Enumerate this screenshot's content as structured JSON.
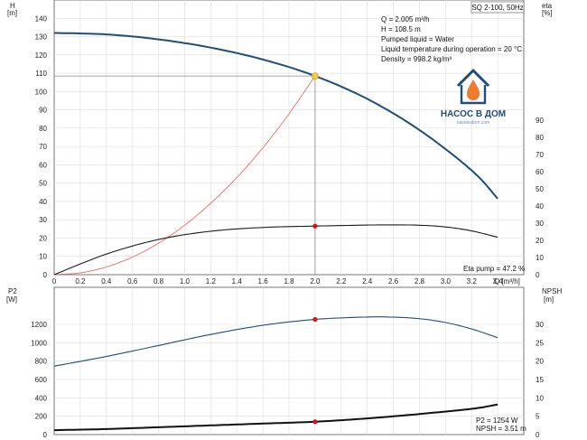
{
  "title_box": "SQ 2-100, 50Hz",
  "info_lines": [
    "Q = 2.005 m³/h",
    "H = 108.5 m",
    "Pumped liquid = Water",
    "Liquid temperature during operation = 20 °C",
    "Density = 998.2 kg/m³"
  ],
  "logo": {
    "title": "НАСОС В ДОМ",
    "subtitle": "nasosvdom.com"
  },
  "colors": {
    "head_curve": "#1f4e79",
    "eta_curve": "#1a1a1a",
    "system_curve": "#f06a5a",
    "duty_point": "#f5c542",
    "marker": "#e01010",
    "grid": "#dddddd"
  },
  "chart_data": [
    {
      "type": "line",
      "x_label": "Q [m³/h]",
      "y_left_label_top": "H",
      "y_left_label_unit": "[m]",
      "y_right_label_top": "eta",
      "y_right_label_unit": "[%]",
      "xlim": [
        0,
        3.6
      ],
      "ylim_left": [
        0,
        150
      ],
      "ylim_right": [
        0,
        90
      ],
      "x_ticks": [
        "0",
        "0.2",
        "0.4",
        "0.6",
        "0.8",
        "1.0",
        "1.2",
        "1.4",
        "1.6",
        "1.8",
        "2.0",
        "2.2",
        "2.4",
        "2.6",
        "2.8",
        "3.0",
        "3.2",
        "3.4",
        "Q [m³/h]"
      ],
      "y_left_ticks": [
        "0",
        "10",
        "20",
        "30",
        "40",
        "50",
        "60",
        "70",
        "80",
        "90",
        "100",
        "110",
        "120",
        "130",
        "140"
      ],
      "y_right_ticks": [
        "0",
        "10",
        "20",
        "30",
        "40",
        "50",
        "60",
        "70",
        "80",
        "90"
      ],
      "grid": true,
      "series": [
        {
          "key": "H",
          "axis": "left",
          "x": [
            0,
            0.4,
            0.8,
            1.2,
            1.6,
            2.0,
            2.4,
            2.8,
            3.2,
            3.4
          ],
          "y": [
            132,
            131.2,
            128.5,
            124,
            117.5,
            108.5,
            96,
            79,
            57,
            41.5
          ]
        },
        {
          "key": "Eta",
          "axis": "right",
          "x": [
            0,
            0.4,
            0.8,
            1.2,
            1.6,
            2.0,
            2.4,
            2.6,
            2.8,
            3.0,
            3.2,
            3.4
          ],
          "y": [
            0,
            12,
            20.5,
            25.3,
            27.5,
            28.3,
            28.9,
            29.0,
            28.8,
            27.8,
            25.5,
            21.8
          ]
        },
        {
          "key": "System",
          "axis": "left",
          "x": [
            0,
            0.2,
            0.4,
            0.6,
            0.8,
            1.0,
            1.2,
            1.4,
            1.6,
            1.8,
            2.0
          ],
          "y": [
            0,
            1,
            4.2,
            9.6,
            17.2,
            27,
            39,
            53,
            69.3,
            87.8,
            108.5
          ]
        }
      ],
      "duty_point": {
        "x": 2.0,
        "y": 108.5
      },
      "eta_point": {
        "x": 2.0,
        "y": 28.3
      },
      "annotation": "Eta pump = 47.2 %"
    },
    {
      "type": "line",
      "y_left_label_top": "P2",
      "y_left_label_unit": "[W]",
      "y_right_label_top": "NPSH",
      "y_right_label_unit": "[m]",
      "xlim": [
        0,
        3.6
      ],
      "ylim_left": [
        0,
        1450
      ],
      "ylim_right": [
        0,
        35
      ],
      "y_left_ticks": [
        "0",
        "200",
        "400",
        "600",
        "800",
        "1000",
        "1200"
      ],
      "y_right_ticks": [
        "0",
        "5",
        "10",
        "15",
        "20",
        "25",
        "30"
      ],
      "grid": true,
      "series": [
        {
          "key": "P2",
          "axis": "left",
          "x": [
            0,
            0.4,
            0.8,
            1.2,
            1.6,
            2.0,
            2.4,
            2.6,
            2.8,
            3.0,
            3.2,
            3.4
          ],
          "y": [
            745,
            850,
            970,
            1090,
            1190,
            1254,
            1280,
            1278,
            1262,
            1220,
            1150,
            1055
          ]
        },
        {
          "key": "NPSH",
          "axis": "right",
          "x": [
            0,
            0.4,
            0.8,
            1.2,
            1.6,
            2.0,
            2.4,
            2.8,
            3.2,
            3.4
          ],
          "y": [
            1.2,
            1.5,
            2.0,
            2.5,
            3.0,
            3.51,
            4.4,
            5.6,
            7.0,
            8.2
          ]
        }
      ],
      "p2_point": {
        "x": 2.0,
        "y": 1254
      },
      "npsh_point": {
        "x": 2.0,
        "y": 3.51
      },
      "annotations": [
        "P2 = 1254 W",
        "NPSH = 3.51 m"
      ]
    }
  ]
}
